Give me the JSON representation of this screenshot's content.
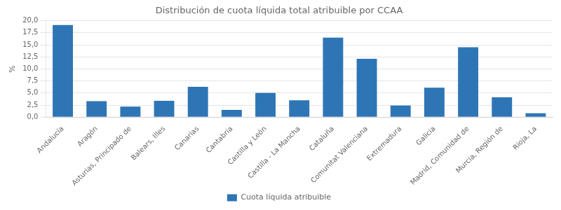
{
  "chart_data": {
    "type": "bar",
    "title": "Distribución de cuota líquida total atribuible por CCAA",
    "ylabel": "%",
    "categories": [
      "Andalucía",
      "Aragón",
      "Asturias, Principado de",
      "Balears, Illes",
      "Canarias",
      "Cantabria",
      "Castilla y León",
      "Castilla - La Mancha",
      "Cataluña",
      "Comunitat Valenciana",
      "Extremadura",
      "Galicia",
      "Madrid, Comunidad de",
      "Murcia, Región de",
      "Rioja, La"
    ],
    "series": [
      {
        "name": "Cuota líquida atribuible",
        "color": "#2e75b6",
        "values": [
          19.1,
          3.3,
          2.2,
          3.4,
          6.3,
          1.5,
          5.0,
          3.5,
          16.5,
          12.1,
          2.4,
          6.1,
          14.5,
          4.1,
          0.8
        ]
      }
    ],
    "ylim": [
      0,
      20.0
    ],
    "yticks": [
      {
        "value": 0.0,
        "label": "0,0"
      },
      {
        "value": 2.5,
        "label": "2,5"
      },
      {
        "value": 5.0,
        "label": "5,0"
      },
      {
        "value": 7.5,
        "label": "7,5"
      },
      {
        "value": 10.0,
        "label": "10,0"
      },
      {
        "value": 12.5,
        "label": "12,5"
      },
      {
        "value": 15.0,
        "label": "15,0"
      },
      {
        "value": 17.5,
        "label": "17,5"
      },
      {
        "value": 20.0,
        "label": "20,0"
      }
    ],
    "grid": true,
    "legend": "bottom"
  }
}
